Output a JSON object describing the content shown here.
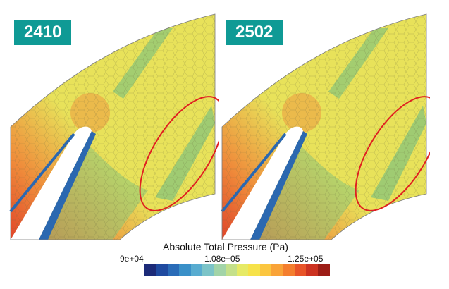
{
  "panels": [
    {
      "label": "2410",
      "band_shift": 0
    },
    {
      "label": "2502",
      "band_shift": 1
    }
  ],
  "colors": {
    "badge": "#0f9a95",
    "annotation": "#e02020",
    "field_yellow": "#e8e25a",
    "field_green": "#8cc678",
    "field_orange": "#ef8a3a",
    "field_red": "#e0452a",
    "wall_blue": "#2b68b0"
  },
  "legend": {
    "title": "Absolute Total Pressure (Pa)",
    "min_label": "9e+04",
    "mid_label": "1.08e+05",
    "max_label": "1.25e+05",
    "stops": [
      "#1c2a78",
      "#1f4aa0",
      "#2a6cb8",
      "#3a90c8",
      "#58acd0",
      "#7cc4c8",
      "#a2d4a8",
      "#c4e08a",
      "#e6ea66",
      "#f6e24a",
      "#fbc640",
      "#f9a338",
      "#f47e2e",
      "#e85428",
      "#cc3221",
      "#9c1d16"
    ]
  }
}
